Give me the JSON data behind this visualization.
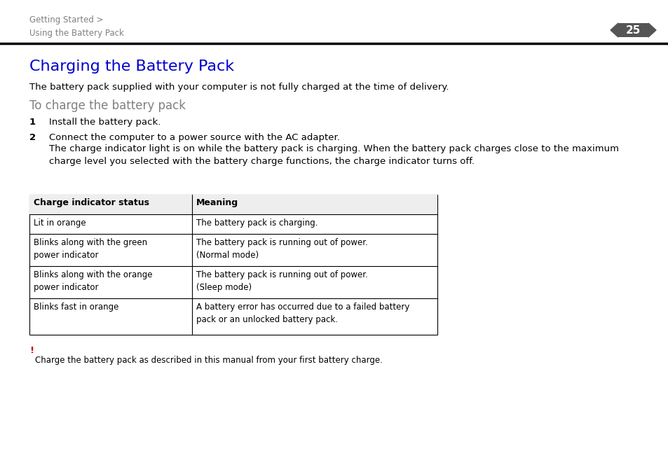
{
  "bg_color": "#ffffff",
  "header_breadcrumb": "Getting Started >\nUsing the Battery Pack",
  "page_number": "25",
  "title": "Charging the Battery Pack",
  "title_color": "#0000cc",
  "subtitle_intro": "The battery pack supplied with your computer is not fully charged at the time of delivery.",
  "subtitle_section": "To charge the battery pack",
  "step1_num": "1",
  "step1_text": "Install the battery pack.",
  "step2_num": "2",
  "step2_text": "Connect the computer to a power source with the AC adapter.",
  "step2_continuation": "The charge indicator light is on while the battery pack is charging. When the battery pack charges close to the maximum\ncharge level you selected with the battery charge functions, the charge indicator turns off.",
  "table_col1_header": "Charge indicator status",
  "table_col2_header": "Meaning",
  "table_rows": [
    [
      "Lit in orange",
      "The battery pack is charging."
    ],
    [
      "Blinks along with the green\npower indicator",
      "The battery pack is running out of power.\n(Normal mode)"
    ],
    [
      "Blinks along with the orange\npower indicator",
      "The battery pack is running out of power.\n(Sleep mode)"
    ],
    [
      "Blinks fast in orange",
      "A battery error has occurred due to a failed battery\npack or an unlocked battery pack."
    ]
  ],
  "note_exclamation": "!",
  "note_exclamation_color": "#cc0000",
  "note_text": "Charge the battery pack as described in this manual from your first battery charge.",
  "header_line_color": "#000000",
  "table_border_color": "#000000",
  "breadcrumb_color": "#808080",
  "page_num_color": "#000000",
  "body_text_color": "#000000",
  "subtitle_section_color": "#808080",
  "arrow_color": "#555555"
}
